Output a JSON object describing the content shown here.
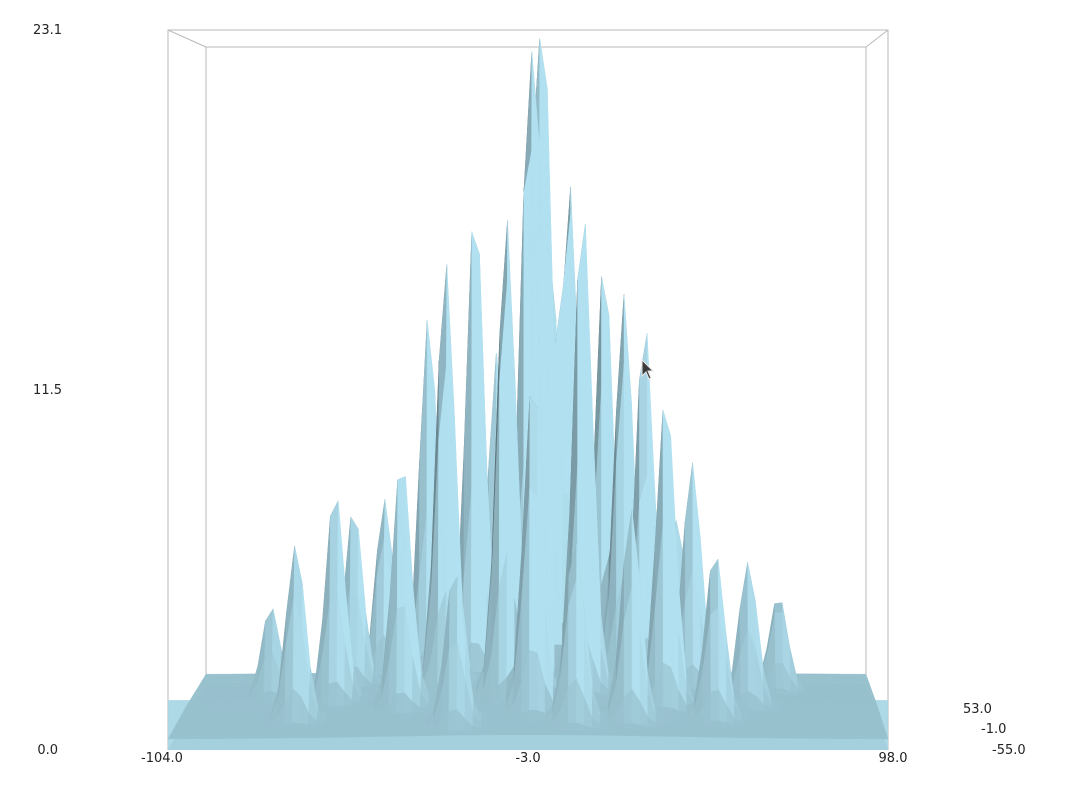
{
  "chart_data": {
    "type": "surface-3d",
    "title": "",
    "x_axis": {
      "range": [
        -104.0,
        98.0
      ],
      "ticks": [
        "-104.0",
        "-3.0",
        "98.0"
      ]
    },
    "y_axis": {
      "range": [
        -55.0,
        53.0
      ],
      "ticks": [
        "53.0",
        "-1.0",
        "-55.0"
      ]
    },
    "z_axis": {
      "range": [
        0.0,
        23.1
      ],
      "ticks": [
        "23.1",
        "11.5",
        "0.0"
      ]
    },
    "surface_color": "#a9d6e5",
    "shadow_color": "#4f656c",
    "peaks": [
      {
        "x": 0,
        "y": 0,
        "z": 23.1
      },
      {
        "x": -4,
        "y": -6,
        "z": 19.5
      },
      {
        "x": -20,
        "y": 10,
        "z": 17.8
      },
      {
        "x": 8,
        "y": 4,
        "z": 18.0
      },
      {
        "x": -10,
        "y": -18,
        "z": 16.6
      },
      {
        "x": 12,
        "y": -10,
        "z": 16.2
      },
      {
        "x": -28,
        "y": -8,
        "z": 14.5
      },
      {
        "x": -34,
        "y": 16,
        "z": 13.2
      },
      {
        "x": 24,
        "y": 14,
        "z": 13.6
      },
      {
        "x": 30,
        "y": -4,
        "z": 12.3
      },
      {
        "x": 18,
        "y": 24,
        "z": 14.6
      },
      {
        "x": -14,
        "y": 26,
        "z": 12.5
      },
      {
        "x": 36,
        "y": -20,
        "z": 10.2
      },
      {
        "x": -40,
        "y": -22,
        "z": 8.8
      },
      {
        "x": -60,
        "y": -10,
        "z": 7.2
      },
      {
        "x": -70,
        "y": -30,
        "z": 5.8
      },
      {
        "x": 50,
        "y": -30,
        "z": 5.5
      },
      {
        "x": 60,
        "y": -10,
        "z": 4.8
      },
      {
        "x": 44,
        "y": 6,
        "z": 7.8
      },
      {
        "x": -48,
        "y": 30,
        "z": 6.5
      },
      {
        "x": -6,
        "y": 40,
        "z": 9.5
      },
      {
        "x": 10,
        "y": -40,
        "z": 6.0
      },
      {
        "x": -24,
        "y": -42,
        "z": 5.0
      },
      {
        "x": 2,
        "y": 18,
        "z": 15.0
      },
      {
        "x": -2,
        "y": -30,
        "z": 11.0
      },
      {
        "x": 26,
        "y": -36,
        "z": 6.8
      },
      {
        "x": -56,
        "y": 12,
        "z": 6.2
      },
      {
        "x": 70,
        "y": 20,
        "z": 3.5
      },
      {
        "x": -80,
        "y": 6,
        "z": 3.2
      },
      {
        "x": 40,
        "y": 34,
        "z": 5.6
      }
    ]
  }
}
